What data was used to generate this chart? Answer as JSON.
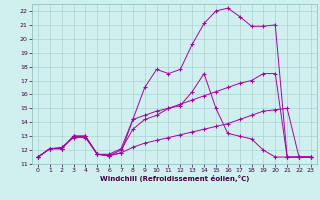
{
  "xlabel": "Windchill (Refroidissement éolien,°C)",
  "bg_color": "#cff0ee",
  "grid_color": "#aad4d0",
  "line_color": "#aa00aa",
  "xlim": [
    -0.5,
    23.5
  ],
  "ylim": [
    11,
    22.5
  ],
  "xticks": [
    0,
    1,
    2,
    3,
    4,
    5,
    6,
    7,
    8,
    9,
    10,
    11,
    12,
    13,
    14,
    15,
    16,
    17,
    18,
    19,
    20,
    21,
    22,
    23
  ],
  "yticks": [
    11,
    12,
    13,
    14,
    15,
    16,
    17,
    18,
    19,
    20,
    21,
    22
  ],
  "line1_x": [
    0,
    1,
    2,
    3,
    4,
    5,
    6,
    7,
    8,
    9,
    10,
    11,
    12,
    13,
    14,
    15,
    16,
    17,
    18,
    19,
    20,
    21,
    22,
    23
  ],
  "line1_y": [
    11.5,
    12.1,
    12.1,
    13.0,
    13.0,
    11.7,
    11.6,
    11.8,
    12.2,
    12.5,
    12.7,
    12.9,
    13.1,
    13.3,
    13.5,
    13.7,
    13.9,
    14.2,
    14.5,
    14.8,
    14.9,
    15.0,
    11.5,
    11.5
  ],
  "line2_x": [
    0,
    1,
    2,
    3,
    4,
    5,
    6,
    7,
    8,
    9,
    10,
    11,
    12,
    13,
    14,
    15,
    16,
    17,
    18,
    19,
    20,
    21,
    22,
    23
  ],
  "line2_y": [
    11.5,
    12.1,
    12.1,
    13.0,
    13.0,
    11.7,
    11.6,
    12.0,
    13.5,
    14.2,
    14.5,
    15.0,
    15.3,
    15.6,
    15.9,
    16.2,
    16.5,
    16.8,
    17.0,
    17.5,
    17.5,
    11.5,
    11.5,
    11.5
  ],
  "line3_x": [
    0,
    1,
    2,
    3,
    4,
    5,
    6,
    7,
    8,
    9,
    10,
    11,
    12,
    13,
    14,
    15,
    16,
    17,
    18,
    19,
    20,
    21,
    22,
    23
  ],
  "line3_y": [
    11.5,
    12.1,
    12.2,
    12.9,
    12.9,
    11.7,
    11.7,
    12.1,
    14.2,
    16.5,
    17.8,
    17.5,
    17.8,
    19.6,
    21.1,
    22.0,
    22.2,
    21.6,
    20.9,
    20.9,
    21.0,
    11.5,
    11.5,
    11.5
  ],
  "line4_x": [
    0,
    1,
    2,
    3,
    4,
    5,
    6,
    7,
    8,
    9,
    10,
    11,
    12,
    13,
    14,
    15,
    16,
    17,
    18,
    19,
    20,
    21,
    22,
    23
  ],
  "line4_y": [
    11.5,
    12.1,
    12.1,
    13.0,
    13.0,
    11.7,
    11.6,
    11.8,
    14.2,
    14.5,
    14.8,
    15.0,
    15.2,
    16.2,
    17.5,
    15.0,
    13.2,
    13.0,
    12.8,
    12.0,
    11.5,
    11.5,
    11.5,
    11.5
  ]
}
